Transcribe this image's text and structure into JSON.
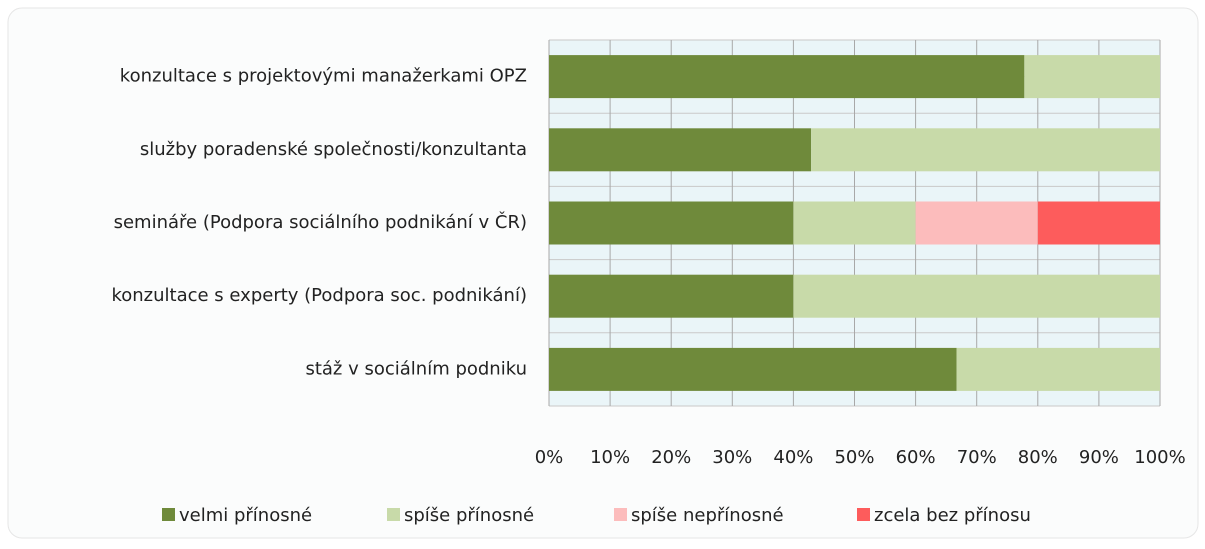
{
  "chart_data": {
    "type": "stacked_barh",
    "categories": [
      "konzultace s projektovými manažerkami OPZ",
      "služby poradenské společnosti/konzultanta",
      "semináře (Podpora sociálního podnikání v ČR)",
      "konzultace s experty (Podpora soc. podnikání)",
      "stáž v sociálním podniku"
    ],
    "series": [
      {
        "name": "velmi přínosné",
        "color": "#6f8a3b",
        "values": [
          77.8,
          42.9,
          40,
          40,
          66.7
        ]
      },
      {
        "name": "spíše přínosné",
        "color": "#c8daa9",
        "values": [
          22.2,
          57.1,
          20,
          60,
          33.3
        ]
      },
      {
        "name": "spíše nepřínosné",
        "color": "#fcbcbc",
        "values": [
          0,
          0,
          20,
          0,
          0
        ]
      },
      {
        "name": "zcela bez přínosu",
        "color": "#fd5c5c",
        "values": [
          0,
          0,
          20,
          0,
          0
        ]
      }
    ],
    "xlim": [
      0,
      100
    ],
    "xticks": [
      {
        "value": 0,
        "label": "0%"
      },
      {
        "value": 10,
        "label": "10%"
      },
      {
        "value": 20,
        "label": "20%"
      },
      {
        "value": 30,
        "label": "30%"
      },
      {
        "value": 40,
        "label": "40%"
      },
      {
        "value": 50,
        "label": "50%"
      },
      {
        "value": 60,
        "label": "60%"
      },
      {
        "value": 70,
        "label": "70%"
      },
      {
        "value": 80,
        "label": "80%"
      },
      {
        "value": 90,
        "label": "90%"
      },
      {
        "value": 100,
        "label": "100%"
      }
    ],
    "grid": true,
    "legend": "bottom"
  }
}
